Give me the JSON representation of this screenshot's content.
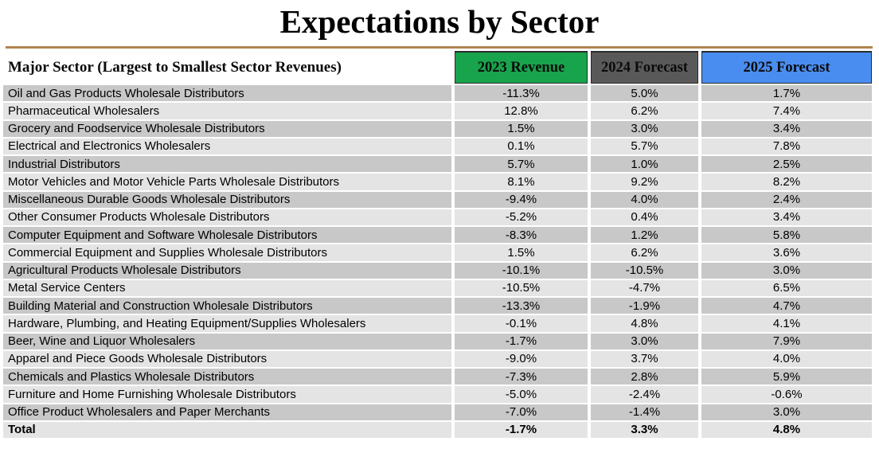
{
  "page": {
    "title": "Expectations by Sector"
  },
  "colors": {
    "rule": "#b1854e",
    "header_2023_bg": "#18a44c",
    "header_2024_bg": "#595959",
    "header_2025_bg": "#4a8df0",
    "row_dark": "#c8c8c8",
    "row_light": "#e4e4e4",
    "row_gap": "#ffffff",
    "header_text": "#0b0b0b"
  },
  "chart_data": {
    "type": "table",
    "title": "Expectations by Sector",
    "columns": [
      "Major Sector (Largest to Smallest Sector Revenues)",
      "2023 Revenue",
      "2024 Forecast",
      "2025 Forecast"
    ],
    "rows": [
      [
        "Oil and Gas Products Wholesale Distributors",
        "-11.3%",
        "5.0%",
        "1.7%"
      ],
      [
        "Pharmaceutical Wholesalers",
        "12.8%",
        "6.2%",
        "7.4%"
      ],
      [
        "Grocery and Foodservice Wholesale Distributors",
        "1.5%",
        "3.0%",
        "3.4%"
      ],
      [
        "Electrical and Electronics Wholesalers",
        "0.1%",
        "5.7%",
        "7.8%"
      ],
      [
        "Industrial Distributors",
        "5.7%",
        "1.0%",
        "2.5%"
      ],
      [
        "Motor Vehicles and Motor Vehicle Parts Wholesale Distributors",
        "8.1%",
        "9.2%",
        "8.2%"
      ],
      [
        "Miscellaneous Durable Goods Wholesale Distributors",
        "-9.4%",
        "4.0%",
        "2.4%"
      ],
      [
        "Other Consumer Products Wholesale Distributors",
        "-5.2%",
        "0.4%",
        "3.4%"
      ],
      [
        "Computer Equipment and Software Wholesale Distributors",
        "-8.3%",
        "1.2%",
        "5.8%"
      ],
      [
        "Commercial Equipment and Supplies Wholesale Distributors",
        "1.5%",
        "6.2%",
        "3.6%"
      ],
      [
        "Agricultural Products Wholesale Distributors",
        "-10.1%",
        "-10.5%",
        "3.0%"
      ],
      [
        "Metal Service Centers",
        "-10.5%",
        "-4.7%",
        "6.5%"
      ],
      [
        "Building Material and Construction Wholesale Distributors",
        "-13.3%",
        "-1.9%",
        "4.7%"
      ],
      [
        "Hardware, Plumbing, and Heating Equipment/Supplies Wholesalers",
        "-0.1%",
        "4.8%",
        "4.1%"
      ],
      [
        "Beer, Wine and Liquor Wholesalers",
        "-1.7%",
        "3.0%",
        "7.9%"
      ],
      [
        "Apparel and Piece Goods Wholesale Distributors",
        "-9.0%",
        "3.7%",
        "4.0%"
      ],
      [
        "Chemicals and Plastics Wholesale Distributors",
        "-7.3%",
        "2.8%",
        "5.9%"
      ],
      [
        "Furniture and Home Furnishing Wholesale Distributors",
        "-5.0%",
        "-2.4%",
        "-0.6%"
      ],
      [
        "Office Product Wholesalers and Paper Merchants",
        "-7.0%",
        "-1.4%",
        "3.0%"
      ],
      [
        "Total",
        "-1.7%",
        "3.3%",
        "4.8%"
      ]
    ]
  }
}
